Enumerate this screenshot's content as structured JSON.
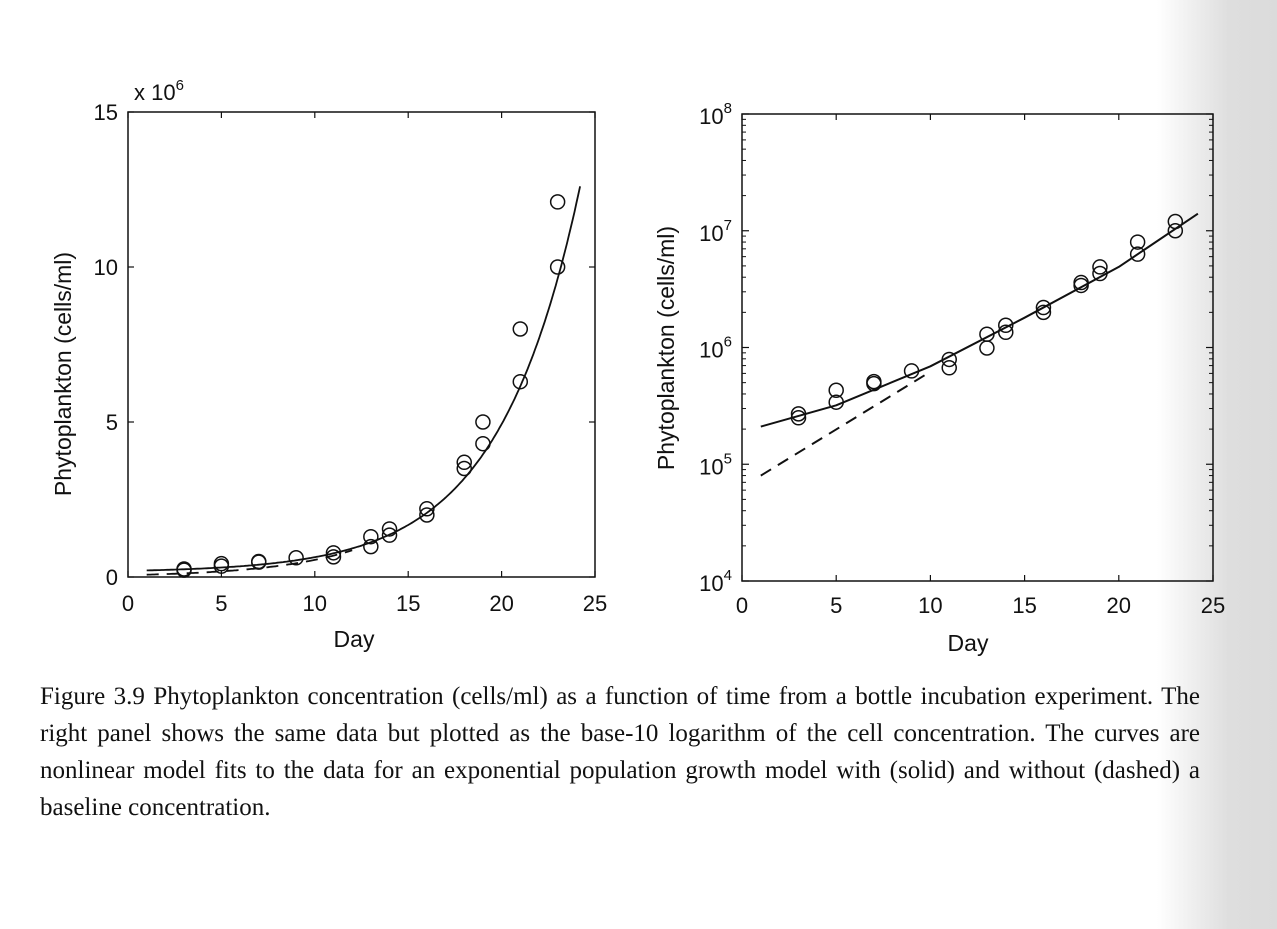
{
  "chart_data": [
    {
      "type": "scatter",
      "panel": "left",
      "xlabel": "Day",
      "ylabel": "Phytoplankton (cells/ml)",
      "y_multiplier_label": "x 10",
      "y_multiplier_exponent": "6",
      "xlim": [
        0,
        25
      ],
      "ylim": [
        0,
        15
      ],
      "y_scale": "linear",
      "grid": false,
      "x_ticks": [
        "0",
        "5",
        "10",
        "15",
        "20",
        "25"
      ],
      "y_ticks": [
        "0",
        "5",
        "10",
        "15"
      ],
      "points": [
        {
          "x": 3,
          "y": 0.22
        },
        {
          "x": 3,
          "y": 0.26
        },
        {
          "x": 5,
          "y": 0.35
        },
        {
          "x": 5,
          "y": 0.43
        },
        {
          "x": 7,
          "y": 0.48
        },
        {
          "x": 7,
          "y": 0.5
        },
        {
          "x": 9,
          "y": 0.62
        },
        {
          "x": 11,
          "y": 0.65
        },
        {
          "x": 11,
          "y": 0.78
        },
        {
          "x": 13,
          "y": 0.98
        },
        {
          "x": 13,
          "y": 1.3
        },
        {
          "x": 14,
          "y": 1.35
        },
        {
          "x": 14,
          "y": 1.55
        },
        {
          "x": 16,
          "y": 2.0
        },
        {
          "x": 16,
          "y": 2.2
        },
        {
          "x": 18,
          "y": 3.5
        },
        {
          "x": 18,
          "y": 3.7
        },
        {
          "x": 19,
          "y": 4.3
        },
        {
          "x": 19,
          "y": 5.0
        },
        {
          "x": 21,
          "y": 6.3
        },
        {
          "x": 21,
          "y": 8.0
        },
        {
          "x": 23,
          "y": 10.0
        },
        {
          "x": 23,
          "y": 12.1
        }
      ],
      "fits": [
        {
          "style": "solid",
          "model": "baseline + exponential",
          "baseline": 0.15,
          "amplitude": 0.05,
          "rate": 0.228,
          "x_range": [
            1,
            24.2
          ]
        },
        {
          "style": "dashed",
          "model": "exponential",
          "amplitude": 0.06,
          "rate": 0.222,
          "x_range": [
            1,
            12
          ]
        }
      ]
    },
    {
      "type": "scatter",
      "panel": "right",
      "xlabel": "Day",
      "ylabel": "Phytoplankton (cells/ml)",
      "xlim": [
        0,
        25
      ],
      "ylim": [
        10000,
        100000000
      ],
      "y_scale": "log",
      "grid": false,
      "x_ticks": [
        "0",
        "5",
        "10",
        "15",
        "20",
        "25"
      ],
      "y_ticks": [
        {
          "base": "10",
          "exp": "4",
          "value": 10000
        },
        {
          "base": "10",
          "exp": "5",
          "value": 100000
        },
        {
          "base": "10",
          "exp": "6",
          "value": 1000000
        },
        {
          "base": "10",
          "exp": "7",
          "value": 10000000
        },
        {
          "base": "10",
          "exp": "8",
          "value": 100000000
        }
      ],
      "points": [
        {
          "x": 3,
          "y": 250000
        },
        {
          "x": 3,
          "y": 270000
        },
        {
          "x": 5,
          "y": 340000
        },
        {
          "x": 5,
          "y": 430000
        },
        {
          "x": 7,
          "y": 490000
        },
        {
          "x": 7,
          "y": 510000
        },
        {
          "x": 9,
          "y": 630000
        },
        {
          "x": 11,
          "y": 670000
        },
        {
          "x": 11,
          "y": 790000
        },
        {
          "x": 13,
          "y": 990000
        },
        {
          "x": 13,
          "y": 1300000
        },
        {
          "x": 14,
          "y": 1350000
        },
        {
          "x": 14,
          "y": 1550000
        },
        {
          "x": 16,
          "y": 2000000
        },
        {
          "x": 16,
          "y": 2200000
        },
        {
          "x": 18,
          "y": 3400000
        },
        {
          "x": 18,
          "y": 3600000
        },
        {
          "x": 19,
          "y": 4300000
        },
        {
          "x": 19,
          "y": 4900000
        },
        {
          "x": 21,
          "y": 6300000
        },
        {
          "x": 21,
          "y": 8000000
        },
        {
          "x": 23,
          "y": 10000000
        },
        {
          "x": 23,
          "y": 12000000
        }
      ],
      "fits": [
        {
          "style": "solid",
          "model": "baseline + exponential",
          "points": [
            [
              1,
              210000
            ],
            [
              5,
              320000
            ],
            [
              10,
              690000
            ],
            [
              15,
              1800000
            ],
            [
              20,
              4900000
            ],
            [
              24.2,
              14000000
            ]
          ]
        },
        {
          "style": "dashed",
          "model": "exponential",
          "points": [
            [
              1,
              80000
            ],
            [
              10,
              620000
            ]
          ]
        }
      ]
    }
  ],
  "caption": "Figure 3.9 Phytoplankton concentration (cells/ml) as a function of time from a bottle incubation experiment. The right panel shows the same data but plotted as the base-10 logarithm of the cell concentration. The curves are nonlinear model fits to the data for an exponential population growth model with (solid) and without (dashed) a baseline concentration."
}
